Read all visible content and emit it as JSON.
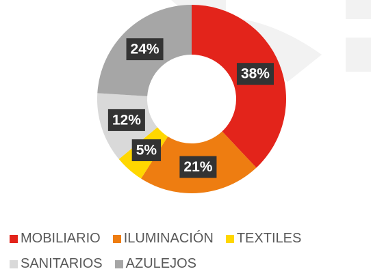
{
  "chart_data": {
    "type": "donut",
    "categories": [
      "MOBILIARIO",
      "ILUMINACIÓN",
      "TEXTILES",
      "SANITARIOS",
      "AZULEJOS"
    ],
    "values": [
      38,
      21,
      5,
      12,
      24
    ],
    "value_labels": [
      "38%",
      "21%",
      "5%",
      "12%",
      "24%"
    ],
    "colors": [
      "#e3241b",
      "#ee7d11",
      "#ffd700",
      "#d9d9d9",
      "#a6a6a6"
    ],
    "legend": "bottom"
  }
}
